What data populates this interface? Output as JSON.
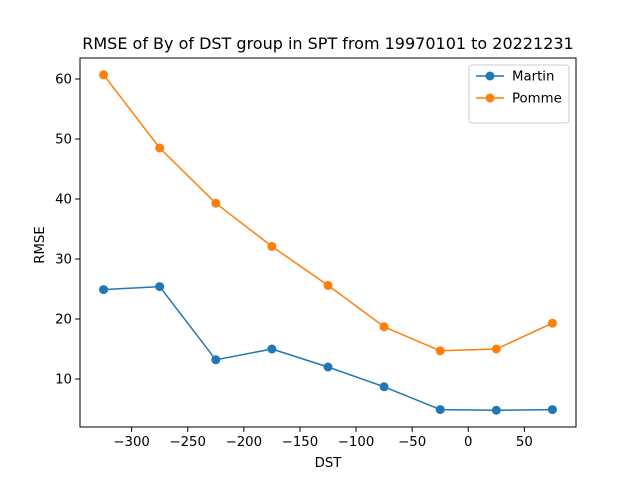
{
  "chart_data": {
    "type": "line",
    "title": "RMSE of By of DST group in SPT from 19970101 to 20221231",
    "xlabel": "DST",
    "ylabel": "RMSE",
    "x": [
      -325,
      -275,
      -225,
      -175,
      -125,
      -75,
      -25,
      25,
      75
    ],
    "xlim": [
      -346,
      96
    ],
    "ylim": [
      2.0,
      63.5
    ],
    "xticks": [
      -300,
      -250,
      -200,
      -150,
      -100,
      -50,
      0,
      50
    ],
    "xtick_labels": [
      "−300",
      "−250",
      "−200",
      "−150",
      "−100",
      "−50",
      "0",
      "50"
    ],
    "yticks": [
      10,
      20,
      30,
      40,
      50,
      60
    ],
    "ytick_labels": [
      "10",
      "20",
      "30",
      "40",
      "50",
      "60"
    ],
    "grid": false,
    "legend_position": "top-right",
    "series": [
      {
        "name": "Martin",
        "color": "#1f77b4",
        "marker": "circle",
        "values": [
          24.9,
          25.4,
          13.2,
          15.0,
          12.0,
          8.7,
          4.9,
          4.8,
          4.9
        ]
      },
      {
        "name": "Pomme",
        "color": "#ff7f0e",
        "marker": "circle",
        "values": [
          60.7,
          48.5,
          39.3,
          32.1,
          25.6,
          18.7,
          14.7,
          15.0,
          19.3
        ]
      }
    ]
  }
}
